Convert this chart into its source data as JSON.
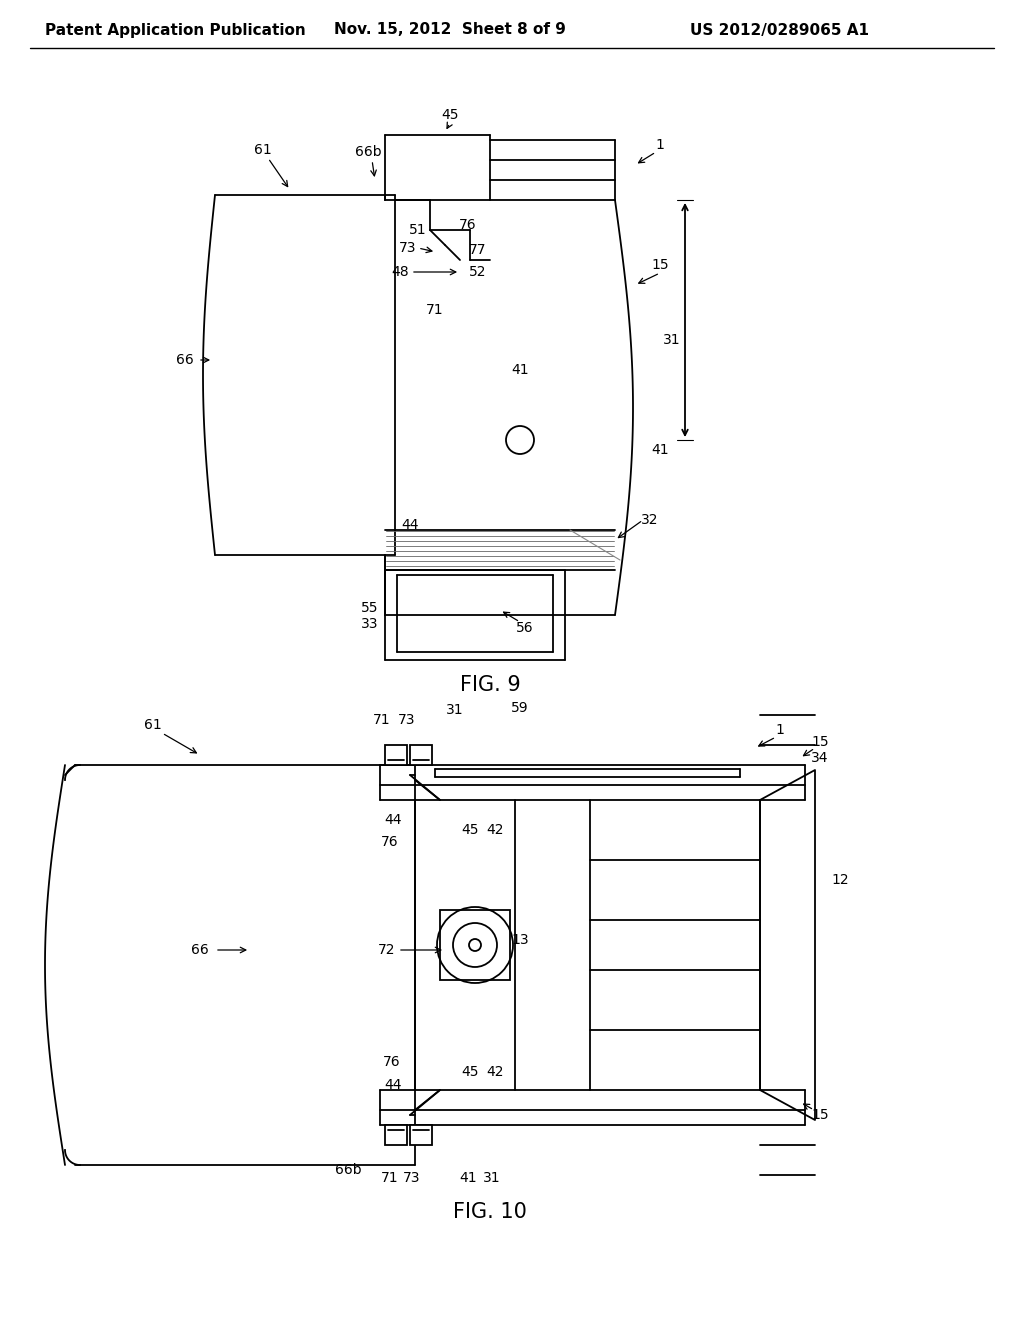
{
  "header_left": "Patent Application Publication",
  "header_mid": "Nov. 15, 2012  Sheet 8 of 9",
  "header_right": "US 2012/0289065 A1",
  "fig9_label": "FIG. 9",
  "fig10_label": "FIG. 10",
  "bg_color": "#ffffff",
  "line_color": "#000000",
  "text_color": "#000000",
  "header_fontsize": 11,
  "ref_fontsize": 10,
  "fig_label_fontsize": 15
}
